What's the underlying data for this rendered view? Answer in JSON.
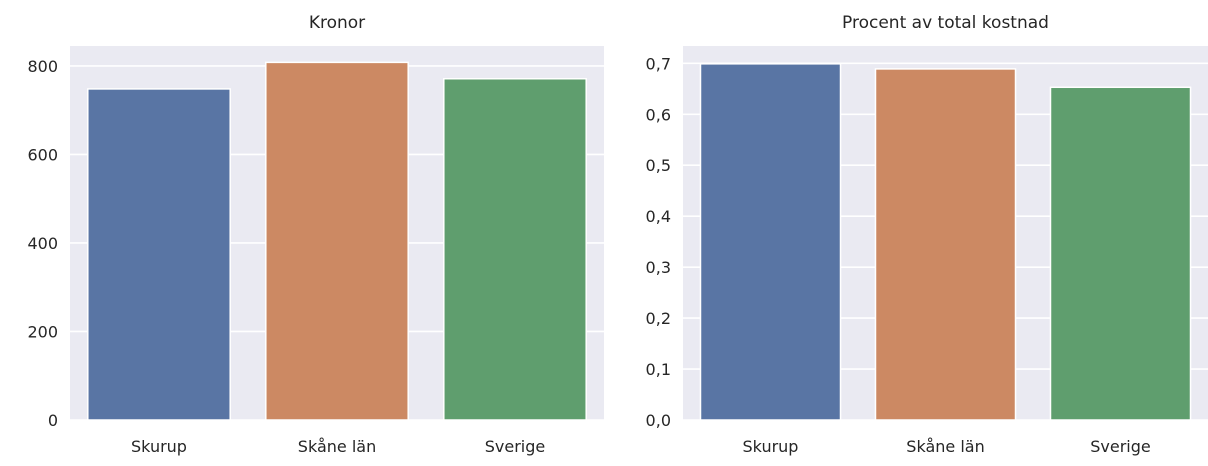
{
  "chart_data": [
    {
      "type": "bar",
      "title": "Kronor",
      "xlabel": "",
      "ylabel": "",
      "categories": [
        "Skurup",
        "Skåne län",
        "Sverige"
      ],
      "values": [
        748,
        808,
        771
      ],
      "colors": [
        "#5975a4",
        "#cc8963",
        "#5f9e6e"
      ],
      "ylim": [
        0,
        845
      ],
      "yticks": [
        0,
        200,
        400,
        600,
        800
      ],
      "ytick_labels": [
        "0",
        "200",
        "400",
        "600",
        "800"
      ],
      "grid": true,
      "background": "#eaeaf2"
    },
    {
      "type": "bar",
      "title": "Procent av total kostnad",
      "xlabel": "",
      "ylabel": "",
      "categories": [
        "Skurup",
        "Skåne län",
        "Sverige"
      ],
      "values": [
        0.699,
        0.689,
        0.653
      ],
      "colors": [
        "#5975a4",
        "#cc8963",
        "#5f9e6e"
      ],
      "ylim": [
        0,
        0.734
      ],
      "yticks": [
        0,
        0.1,
        0.2,
        0.3,
        0.4,
        0.5,
        0.6,
        0.7
      ],
      "ytick_labels": [
        "0,0",
        "0,1",
        "0,2",
        "0,3",
        "0,4",
        "0,5",
        "0,6",
        "0,7"
      ],
      "grid": true,
      "background": "#eaeaf2"
    }
  ]
}
